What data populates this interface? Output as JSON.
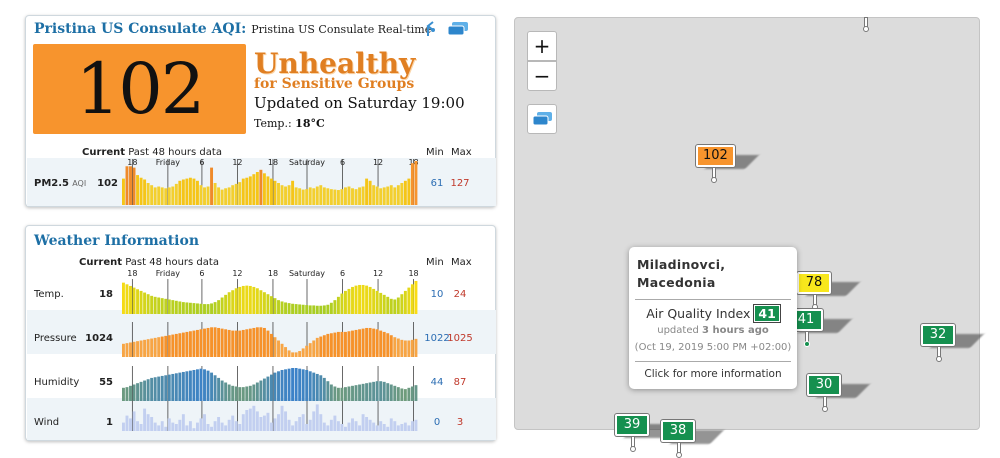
{
  "aqi_panel": {
    "title": "Pristina US Consulate AQI:",
    "subtitle": "Pristina US Consulate Real-time",
    "aqi_value": "102",
    "aqi_color": "#f7942d",
    "level_main": "Unhealthy",
    "level_sub": "for Sensitive Groups",
    "updated": "Updated on Saturday 19:00",
    "temp_label": "Temp.:",
    "temp_value": "18°C",
    "icons": [
      "share-icon",
      "layers-icon"
    ],
    "header_current": "Current",
    "header_past": "Past 48 hours data",
    "header_min": "Min",
    "header_max": "Max",
    "row": {
      "label": "PM2.5",
      "unit": "AQI",
      "current": "102",
      "min": "61",
      "max": "127"
    }
  },
  "weather_panel": {
    "title": "Weather Information",
    "header_current": "Current",
    "header_past": "Past 48 hours data",
    "header_min": "Min",
    "header_max": "Max",
    "rows": [
      {
        "label": "Temp.",
        "current": "18",
        "min": "10",
        "max": "24"
      },
      {
        "label": "Pressure",
        "current": "1024",
        "min": "1022",
        "max": "1025"
      },
      {
        "label": "Humidity",
        "current": "55",
        "min": "44",
        "max": "87"
      },
      {
        "label": "Wind",
        "current": "1",
        "min": "0",
        "max": "3"
      }
    ]
  },
  "time_ticks": [
    "18",
    "Friday",
    "6",
    "12",
    "18",
    "Saturday",
    "6",
    "12",
    "18"
  ],
  "chart_data": [
    {
      "type": "bar",
      "name": "PM2.5",
      "values": [
        60,
        88,
        88,
        85,
        68,
        62,
        58,
        50,
        45,
        40,
        42,
        40,
        38,
        40,
        42,
        48,
        55,
        58,
        60,
        62,
        60,
        55,
        45,
        40,
        42,
        85,
        50,
        40,
        35,
        38,
        40,
        45,
        48,
        52,
        60,
        62,
        65,
        70,
        75,
        80,
        72,
        65,
        60,
        55,
        50,
        45,
        42,
        45,
        55,
        40,
        38,
        35,
        36,
        40,
        38,
        42,
        45,
        40,
        38,
        36,
        35,
        34,
        36,
        40,
        42,
        38,
        36,
        40,
        42,
        60,
        55,
        45,
        42,
        38,
        40,
        42,
        45,
        40,
        45,
        50,
        55,
        60,
        95,
        100
      ]
    },
    {
      "type": "bar",
      "name": "Temp.",
      "values": [
        95,
        90,
        85,
        80,
        75,
        70,
        65,
        60,
        55,
        52,
        50,
        48,
        46,
        44,
        42,
        40,
        38,
        36,
        35,
        34,
        33,
        32,
        31,
        30,
        30,
        32,
        36,
        42,
        50,
        58,
        66,
        72,
        78,
        82,
        85,
        86,
        85,
        82,
        78,
        72,
        66,
        60,
        54,
        48,
        42,
        38,
        35,
        33,
        31,
        30,
        29,
        28,
        27,
        26,
        26,
        25,
        25,
        26,
        28,
        34,
        42,
        52,
        62,
        70,
        76,
        82,
        86,
        88,
        88,
        86,
        82,
        76,
        70,
        64,
        58,
        52,
        46,
        44,
        50,
        60,
        70,
        80,
        90,
        100
      ]
    },
    {
      "type": "bar",
      "name": "Pressure",
      "values": [
        40,
        42,
        44,
        46,
        48,
        50,
        52,
        54,
        56,
        58,
        60,
        62,
        64,
        66,
        68,
        70,
        72,
        74,
        76,
        78,
        80,
        82,
        84,
        86,
        88,
        90,
        90,
        88,
        86,
        84,
        82,
        80,
        80,
        80,
        82,
        84,
        86,
        88,
        90,
        90,
        88,
        80,
        70,
        60,
        50,
        40,
        30,
        20,
        14,
        14,
        18,
        26,
        34,
        42,
        50,
        58,
        62,
        66,
        70,
        72,
        74,
        76,
        76,
        76,
        78,
        80,
        82,
        84,
        86,
        88,
        88,
        86,
        84,
        80,
        76,
        72,
        66,
        60,
        56,
        52,
        50,
        50,
        52,
        55
      ]
    },
    {
      "type": "bar",
      "name": "Humidity",
      "values": [
        40,
        42,
        46,
        50,
        54,
        58,
        62,
        66,
        70,
        72,
        74,
        76,
        78,
        80,
        82,
        84,
        86,
        88,
        90,
        92,
        94,
        96,
        98,
        96,
        92,
        86,
        78,
        70,
        62,
        56,
        50,
        46,
        44,
        42,
        42,
        44,
        46,
        50,
        56,
        62,
        68,
        74,
        80,
        86,
        90,
        94,
        96,
        98,
        100,
        100,
        98,
        96,
        94,
        90,
        86,
        82,
        78,
        70,
        60,
        50,
        44,
        40,
        40,
        42,
        44,
        46,
        48,
        50,
        52,
        54,
        56,
        58,
        60,
        60,
        58,
        54,
        50,
        46,
        42,
        38,
        36,
        40,
        44,
        48
      ]
    },
    {
      "type": "bar",
      "name": "Wind",
      "values": [
        30,
        55,
        45,
        70,
        35,
        25,
        80,
        60,
        50,
        30,
        20,
        35,
        15,
        45,
        30,
        25,
        40,
        60,
        20,
        35,
        10,
        30,
        45,
        60,
        25,
        15,
        35,
        50,
        30,
        20,
        40,
        55,
        35,
        25,
        60,
        75,
        80,
        90,
        70,
        50,
        55,
        65,
        30,
        45,
        60,
        90,
        70,
        40,
        20,
        35,
        50,
        60,
        25,
        40,
        70,
        95,
        60,
        30,
        20,
        40,
        55,
        35,
        25,
        15,
        30,
        45,
        35,
        20,
        60,
        50,
        40,
        30,
        20,
        35,
        25,
        15,
        45,
        35,
        20,
        25,
        30,
        20,
        35,
        40
      ]
    }
  ],
  "map": {
    "zoom_in": "+",
    "zoom_out": "−",
    "markers": [
      {
        "value": "102",
        "color": "#f7942d",
        "text_color": "#111"
      },
      {
        "value": "78",
        "color": "#f8e71c",
        "text_color": "#111"
      },
      {
        "value": "41",
        "color": "#15904f",
        "text_color": "#fff"
      },
      {
        "value": "32",
        "color": "#15904f",
        "text_color": "#fff"
      },
      {
        "value": "30",
        "color": "#15904f",
        "text_color": "#fff"
      },
      {
        "value": "39",
        "color": "#15904f",
        "text_color": "#fff"
      },
      {
        "value": "38",
        "color": "#15904f",
        "text_color": "#fff"
      }
    ],
    "popup": {
      "title_line1": "Miladinovci,",
      "title_line2": "Macedonia",
      "aqi_label": "Air Quality Index",
      "aqi_value": "41",
      "updated_prefix": "updated",
      "updated_bold": "3 hours ago",
      "date": "(Oct 19, 2019 5:00 PM +02:00)",
      "click": "Click for more information"
    }
  }
}
